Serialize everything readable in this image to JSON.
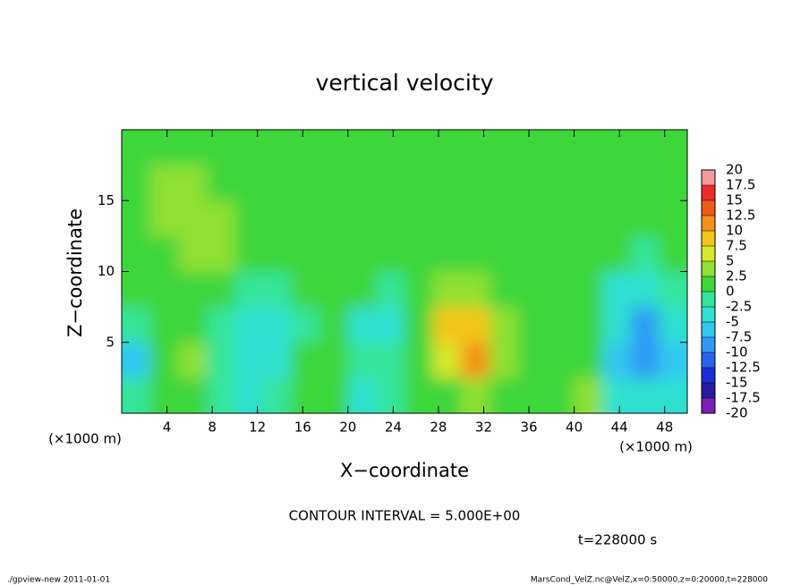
{
  "chart_data": {
    "type": "heatmap",
    "title": "vertical velocity",
    "x_label": "X−coordinate",
    "y_label": "Z−coordinate",
    "x_unit": "(×1000 m)",
    "y_unit": "(×1000 m)",
    "note": "CONTOUR INTERVAL = 5.000E+00",
    "time": "t=228000 s",
    "footer_left": "./gpview-new  2011-01-01",
    "footer_right": "MarsCond_VelZ.nc@VelZ,x=0:50000,z=0:20000,t=228000",
    "xlim": [
      0,
      50
    ],
    "ylim": [
      0,
      20
    ],
    "xticks": [
      4,
      8,
      12,
      16,
      20,
      24,
      28,
      32,
      36,
      40,
      44,
      48
    ],
    "yticks": [
      5,
      10,
      15
    ],
    "x": [
      1.25,
      3.75,
      6.25,
      8.75,
      11.25,
      13.75,
      16.25,
      18.75,
      21.25,
      23.75,
      26.25,
      28.75,
      31.25,
      33.75,
      36.25,
      38.75,
      41.25,
      43.75,
      46.25,
      48.75
    ],
    "y": [
      1.25,
      3.75,
      6.25,
      8.75,
      11.25,
      13.75,
      16.25,
      18.75
    ],
    "z": [
      [
        -1,
        1,
        2,
        -1,
        -3,
        -2,
        1,
        0,
        -3,
        -2,
        1,
        2,
        4,
        1,
        0,
        2,
        3,
        -3,
        -5,
        -4
      ],
      [
        -6,
        1,
        4,
        -1,
        -3,
        -3,
        2,
        1,
        -2,
        -1,
        0,
        6,
        11,
        3,
        1,
        1,
        0,
        -6,
        -9,
        -7
      ],
      [
        -2,
        1,
        2,
        -2,
        -4,
        -3,
        -1,
        0,
        -3,
        -4,
        1,
        8,
        9,
        3,
        1,
        1,
        0,
        -5,
        -8,
        -4
      ],
      [
        0,
        1,
        2,
        0,
        -2,
        -1,
        1,
        1,
        0,
        -1,
        1,
        3,
        3,
        2,
        1,
        1,
        1,
        -3,
        -4,
        -2
      ],
      [
        1,
        2,
        3,
        3,
        1,
        1,
        1,
        1,
        1,
        1,
        1,
        1,
        2,
        1,
        1,
        1,
        1,
        0,
        -1,
        0
      ],
      [
        2,
        3,
        3,
        3,
        2,
        1,
        1,
        1,
        1,
        1,
        1,
        1,
        1,
        1,
        1,
        1,
        1,
        1,
        0,
        1
      ],
      [
        1,
        3,
        3,
        2,
        2,
        1,
        1,
        1,
        1,
        1,
        1,
        1,
        1,
        1,
        1,
        1,
        1,
        1,
        1,
        1
      ],
      [
        1,
        2,
        2,
        2,
        1,
        1,
        1,
        1,
        1,
        1,
        1,
        1,
        1,
        1,
        1,
        1,
        1,
        1,
        1,
        1
      ]
    ],
    "levels": [
      {
        "value": -20,
        "label": "-20"
      },
      {
        "value": -17.5,
        "label": "-17.5"
      },
      {
        "value": -15,
        "label": "-15"
      },
      {
        "value": -12.5,
        "label": "-12.5"
      },
      {
        "value": -10,
        "label": "-10"
      },
      {
        "value": -7.5,
        "label": "-7.5"
      },
      {
        "value": -5,
        "label": "-5"
      },
      {
        "value": -2.5,
        "label": "-2.5"
      },
      0,
      2.5,
      5,
      7.5,
      10,
      12.5,
      15,
      17.5,
      20
    ],
    "colors": [
      "#7a1fb8",
      "#2a1aa0",
      "#1a2fd8",
      "#2a62f0",
      "#2f9af5",
      "#30c8f0",
      "#2de0d0",
      "#34e49a",
      "#3ed63a",
      "#8fe030",
      "#d8e82a",
      "#f5c418",
      "#f59018",
      "#f05a18",
      "#ee2a2a",
      "#f59a9a"
    ]
  }
}
